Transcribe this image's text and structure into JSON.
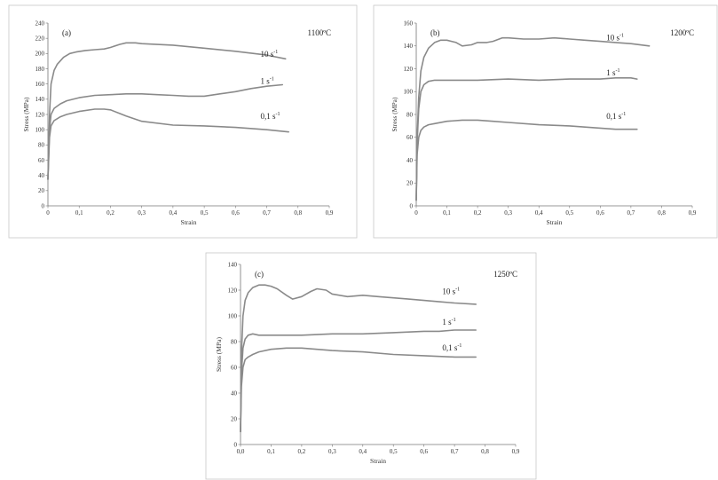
{
  "chart_data": [
    {
      "type": "line",
      "panel": "(a)",
      "temperature": "1100ºC",
      "xlabel": "Strain",
      "ylabel": "Stress (MPa)",
      "xlim": [
        0,
        0.9
      ],
      "ylim": [
        0,
        240
      ],
      "xticks": [
        "0",
        "0,1",
        "0,2",
        "0,3",
        "0,4",
        "0,5",
        "0,6",
        "0,7",
        "0,8",
        "0,9"
      ],
      "yticks": [
        "0",
        "20",
        "40",
        "60",
        "80",
        "100",
        "120",
        "140",
        "160",
        "180",
        "200",
        "220",
        "240"
      ],
      "ystep": 20,
      "series": [
        {
          "name": "10 s",
          "exp": "-1",
          "label_pos": [
            0.68,
            196
          ],
          "x": [
            0,
            0.005,
            0.01,
            0.02,
            0.03,
            0.05,
            0.07,
            0.09,
            0.12,
            0.15,
            0.18,
            0.2,
            0.23,
            0.25,
            0.28,
            0.3,
            0.4,
            0.5,
            0.6,
            0.7,
            0.76
          ],
          "y": [
            35,
            120,
            160,
            178,
            186,
            195,
            200,
            202,
            204,
            205,
            206,
            208,
            212,
            214,
            214,
            213,
            211,
            207,
            203,
            198,
            193
          ]
        },
        {
          "name": "1 s",
          "exp": "-1",
          "label_pos": [
            0.68,
            160
          ],
          "x": [
            0,
            0.005,
            0.01,
            0.02,
            0.04,
            0.06,
            0.1,
            0.15,
            0.2,
            0.25,
            0.3,
            0.35,
            0.4,
            0.45,
            0.5,
            0.55,
            0.6,
            0.65,
            0.7,
            0.75
          ],
          "y": [
            35,
            100,
            120,
            128,
            134,
            138,
            142,
            145,
            146,
            147,
            147,
            146,
            145,
            144,
            144,
            147,
            150,
            154,
            157,
            159
          ]
        },
        {
          "name": "0,1 s",
          "exp": "-1",
          "label_pos": [
            0.68,
            114
          ],
          "x": [
            0,
            0.005,
            0.01,
            0.02,
            0.04,
            0.06,
            0.1,
            0.15,
            0.18,
            0.2,
            0.25,
            0.3,
            0.4,
            0.5,
            0.6,
            0.7,
            0.77
          ],
          "y": [
            35,
            90,
            105,
            112,
            117,
            120,
            124,
            127,
            127,
            126,
            118,
            111,
            106,
            105,
            103,
            100,
            97
          ]
        }
      ]
    },
    {
      "type": "line",
      "panel": "(b)",
      "temperature": "1200ºC",
      "xlabel": "Strain",
      "ylabel": "Stress (MPa)",
      "xlim": [
        0,
        0.9
      ],
      "ylim": [
        0,
        160
      ],
      "xticks": [
        "0",
        "0,1",
        "0,2",
        "0,3",
        "0,4",
        "0,5",
        "0,6",
        "0,7",
        "0,8",
        "0,9"
      ],
      "yticks": [
        "0",
        "20",
        "40",
        "60",
        "80",
        "100",
        "120",
        "140",
        "160"
      ],
      "ystep": 20,
      "series": [
        {
          "name": "10 s",
          "exp": "-1",
          "label_pos": [
            0.62,
            145
          ],
          "x": [
            0,
            0.003,
            0.008,
            0.015,
            0.025,
            0.04,
            0.06,
            0.08,
            0.1,
            0.13,
            0.15,
            0.18,
            0.2,
            0.23,
            0.25,
            0.28,
            0.3,
            0.35,
            0.4,
            0.45,
            0.5,
            0.55,
            0.6,
            0.65,
            0.7,
            0.76
          ],
          "y": [
            5,
            60,
            95,
            118,
            130,
            138,
            143,
            145,
            145,
            143,
            140,
            141,
            143,
            143,
            144,
            147,
            147,
            146,
            146,
            147,
            146,
            145,
            144,
            143,
            142,
            140
          ]
        },
        {
          "name": "1 s",
          "exp": "-1",
          "label_pos": [
            0.62,
            114
          ],
          "x": [
            0,
            0.003,
            0.008,
            0.015,
            0.025,
            0.04,
            0.06,
            0.1,
            0.2,
            0.3,
            0.4,
            0.5,
            0.6,
            0.65,
            0.7,
            0.72
          ],
          "y": [
            5,
            55,
            85,
            100,
            106,
            109,
            110,
            110,
            110,
            111,
            110,
            111,
            111,
            112,
            112,
            111
          ]
        },
        {
          "name": "0,1 s",
          "exp": "-1",
          "label_pos": [
            0.62,
            76
          ],
          "x": [
            0,
            0.003,
            0.008,
            0.015,
            0.025,
            0.04,
            0.06,
            0.1,
            0.15,
            0.2,
            0.25,
            0.3,
            0.4,
            0.5,
            0.6,
            0.65,
            0.72
          ],
          "y": [
            5,
            45,
            60,
            66,
            69,
            71,
            72,
            74,
            75,
            75,
            74,
            73,
            71,
            70,
            68,
            67,
            67
          ]
        }
      ]
    },
    {
      "type": "line",
      "panel": "(c)",
      "temperature": "1250ºC",
      "xlabel": "Strain",
      "ylabel": "Stress (MPa)",
      "xlim": [
        0,
        0.9
      ],
      "ylim": [
        0,
        140
      ],
      "xticks": [
        "0,0",
        "0,1",
        "0,2",
        "0,3",
        "0,4",
        "0,5",
        "0,6",
        "0,7",
        "0,8",
        "0,9"
      ],
      "yticks": [
        "0",
        "20",
        "40",
        "60",
        "80",
        "100",
        "120",
        "140"
      ],
      "ystep": 20,
      "series": [
        {
          "name": "10 s",
          "exp": "-1",
          "label_pos": [
            0.66,
            117
          ],
          "x": [
            0,
            0.003,
            0.008,
            0.015,
            0.025,
            0.04,
            0.06,
            0.08,
            0.1,
            0.12,
            0.15,
            0.17,
            0.2,
            0.23,
            0.25,
            0.28,
            0.3,
            0.35,
            0.4,
            0.45,
            0.5,
            0.55,
            0.6,
            0.65,
            0.7,
            0.77
          ],
          "y": [
            10,
            70,
            100,
            112,
            118,
            122,
            124,
            124,
            123,
            121,
            116,
            113,
            115,
            119,
            121,
            120,
            117,
            115,
            116,
            115,
            114,
            113,
            112,
            111,
            110,
            109
          ]
        },
        {
          "name": "1 s",
          "exp": "-1",
          "label_pos": [
            0.66,
            93
          ],
          "x": [
            0,
            0.003,
            0.008,
            0.015,
            0.025,
            0.04,
            0.06,
            0.1,
            0.2,
            0.3,
            0.4,
            0.5,
            0.6,
            0.65,
            0.7,
            0.77
          ],
          "y": [
            10,
            55,
            75,
            82,
            85,
            86,
            85,
            85,
            85,
            86,
            86,
            87,
            88,
            88,
            89,
            89
          ]
        },
        {
          "name": "0,1 s",
          "exp": "-1",
          "label_pos": [
            0.66,
            73
          ],
          "x": [
            0,
            0.003,
            0.008,
            0.015,
            0.025,
            0.04,
            0.06,
            0.1,
            0.15,
            0.2,
            0.25,
            0.3,
            0.4,
            0.5,
            0.6,
            0.7,
            0.77
          ],
          "y": [
            10,
            45,
            60,
            66,
            68,
            70,
            72,
            74,
            75,
            75,
            74,
            73,
            72,
            70,
            69,
            68,
            68
          ]
        }
      ]
    }
  ]
}
